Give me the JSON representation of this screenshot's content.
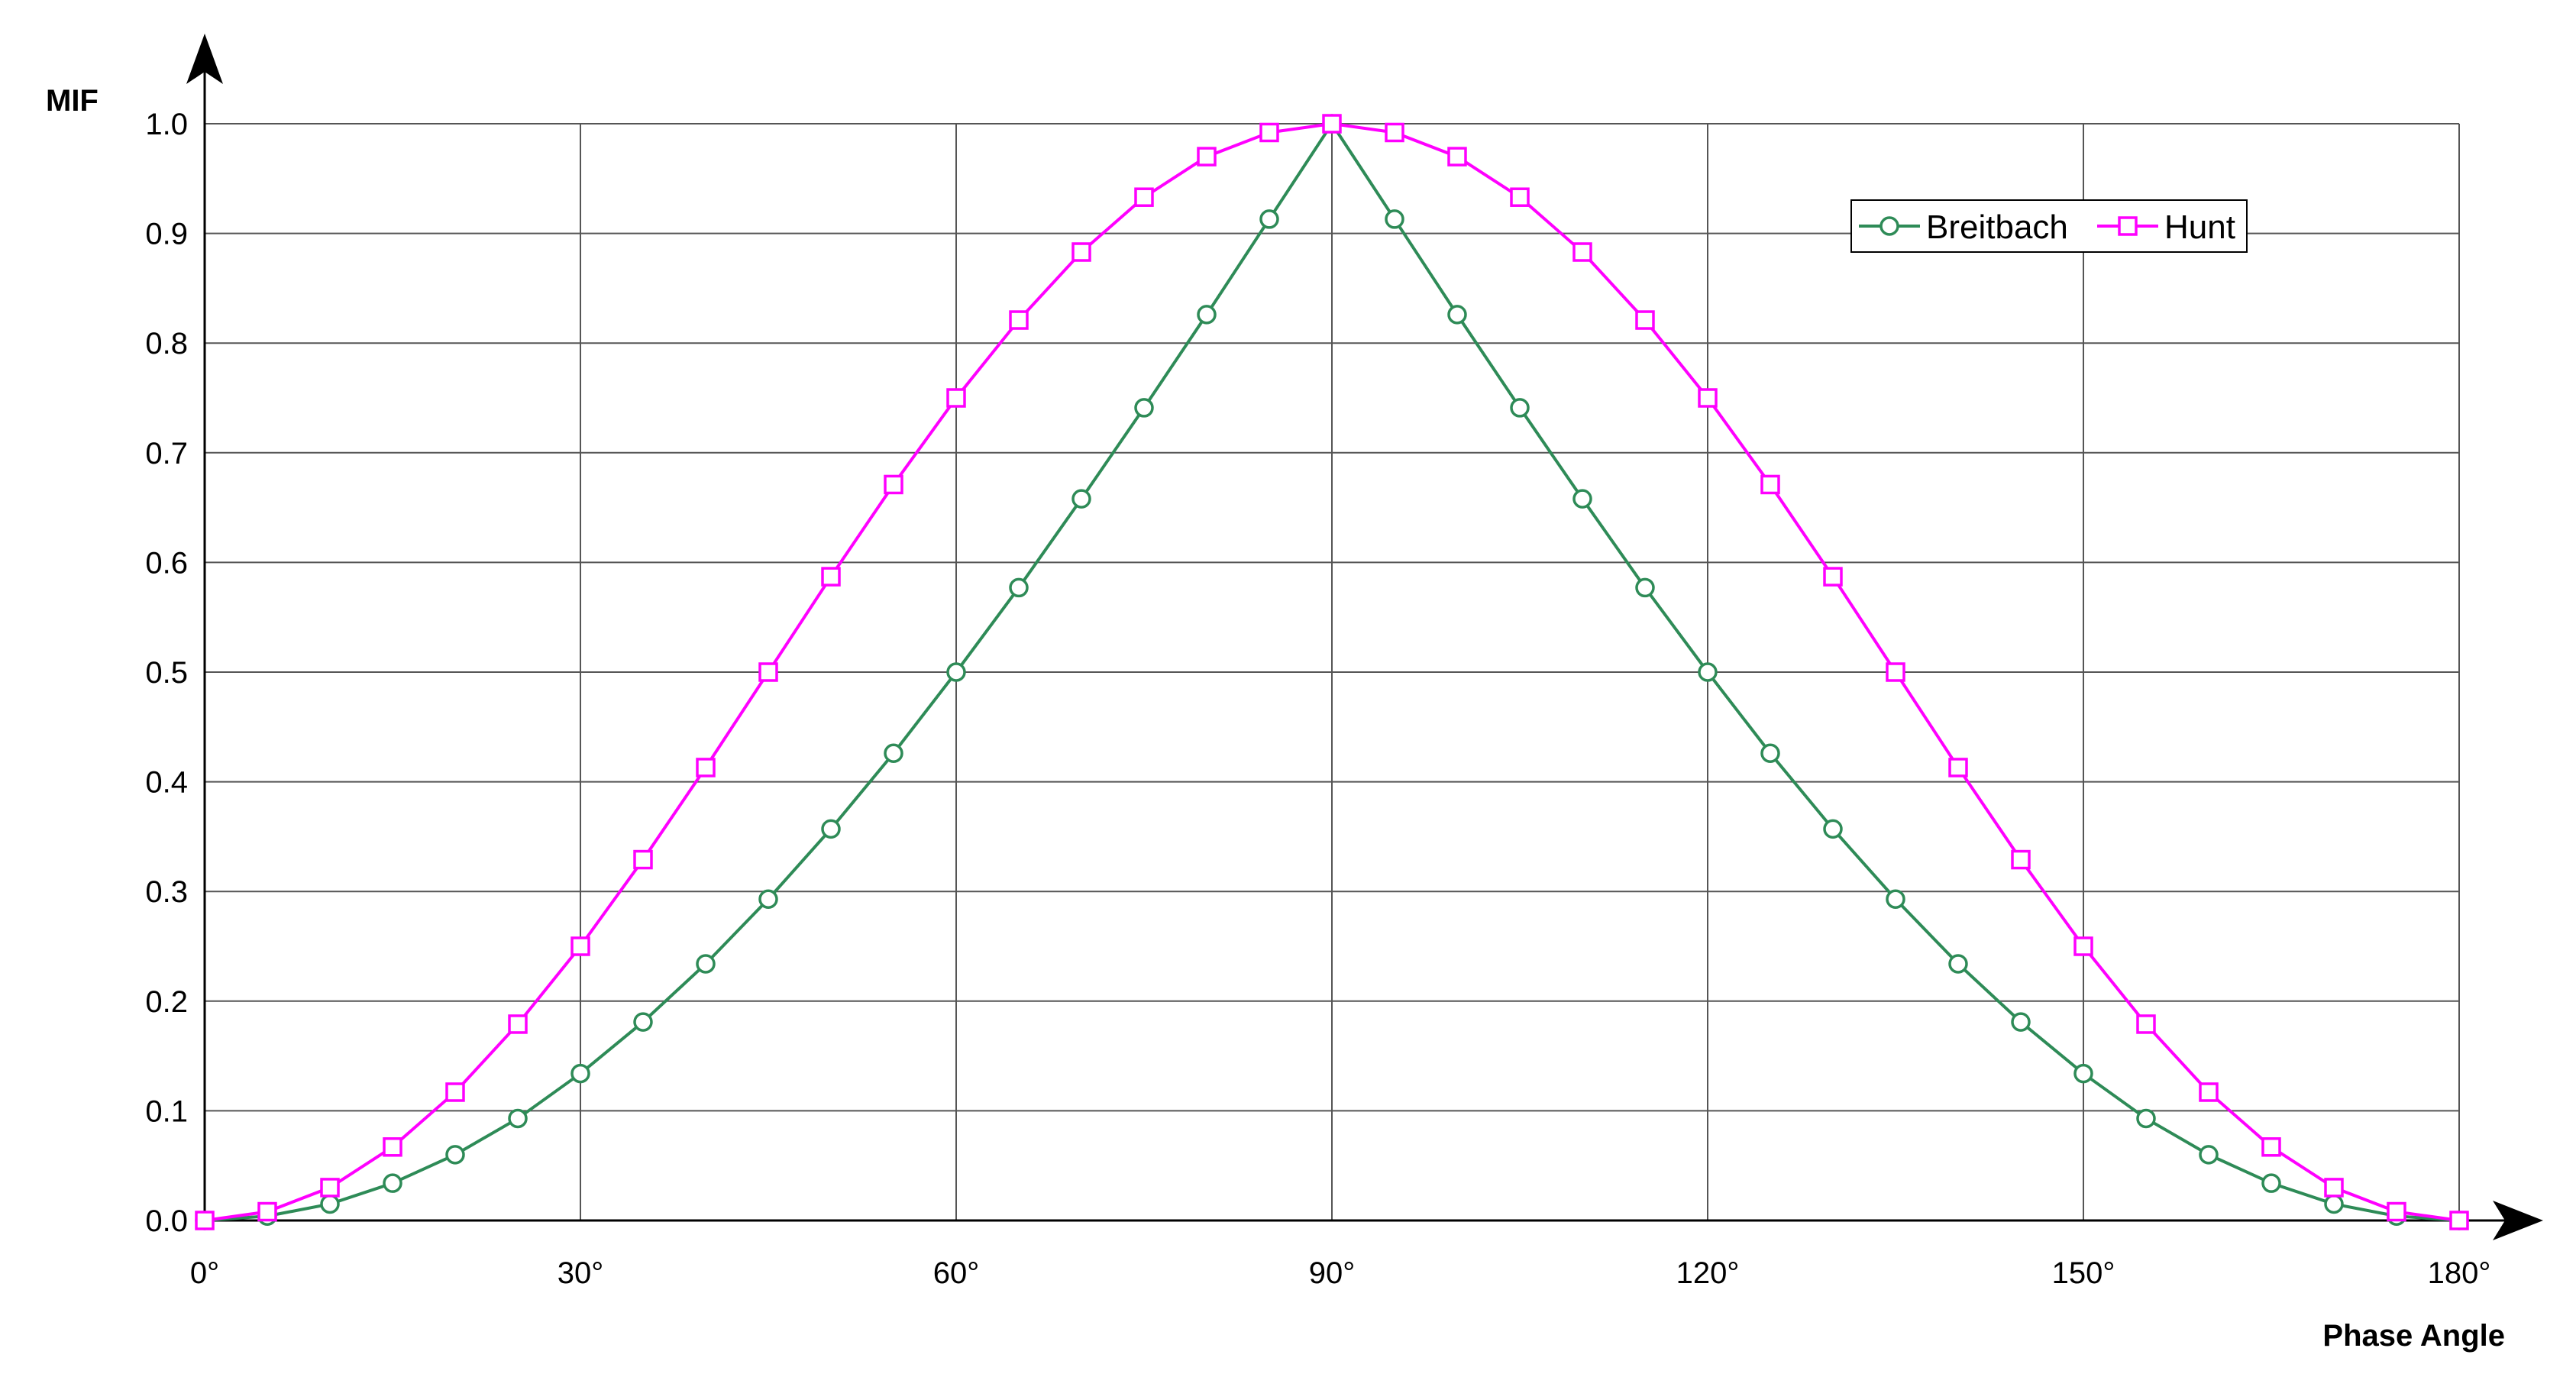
{
  "chart_data": {
    "type": "line",
    "title": "",
    "xlabel": "Phase Angle",
    "ylabel": "MIF",
    "xlim": [
      0,
      180
    ],
    "ylim": [
      0,
      1
    ],
    "x_ticks": [
      0,
      30,
      60,
      90,
      120,
      150,
      180
    ],
    "x_tick_labels": [
      "0°",
      "30°",
      "60°",
      "90°",
      "120°",
      "150°",
      "180°"
    ],
    "y_ticks": [
      0,
      0.1,
      0.2,
      0.3,
      0.4,
      0.5,
      0.6,
      0.7,
      0.8,
      0.9,
      1.0
    ],
    "y_tick_labels": [
      "0.0",
      "0.1",
      "0.2",
      "0.3",
      "0.4",
      "0.5",
      "0.6",
      "0.7",
      "0.8",
      "0.9",
      "1.0"
    ],
    "grid": true,
    "legend_position": "top-right",
    "x": [
      0,
      5,
      10,
      15,
      20,
      25,
      30,
      35,
      40,
      45,
      50,
      55,
      60,
      65,
      70,
      75,
      80,
      85,
      90,
      95,
      100,
      105,
      110,
      115,
      120,
      125,
      130,
      135,
      140,
      145,
      150,
      155,
      160,
      165,
      170,
      175,
      180
    ],
    "series": [
      {
        "name": "Breitbach",
        "color": "#2e8b57",
        "marker": "circle",
        "values": [
          0.0,
          0.004,
          0.015,
          0.034,
          0.06,
          0.093,
          0.134,
          0.181,
          0.234,
          0.293,
          0.357,
          0.426,
          0.5,
          0.577,
          0.658,
          0.741,
          0.826,
          0.913,
          1.0,
          0.913,
          0.826,
          0.741,
          0.658,
          0.577,
          0.5,
          0.426,
          0.357,
          0.293,
          0.234,
          0.181,
          0.134,
          0.093,
          0.06,
          0.034,
          0.015,
          0.004,
          0.0
        ]
      },
      {
        "name": "Hunt",
        "color": "#ff00ff",
        "marker": "square",
        "values": [
          0.0,
          0.008,
          0.03,
          0.067,
          0.117,
          0.179,
          0.25,
          0.329,
          0.413,
          0.5,
          0.587,
          0.671,
          0.75,
          0.821,
          0.883,
          0.933,
          0.97,
          0.992,
          1.0,
          0.992,
          0.97,
          0.933,
          0.883,
          0.821,
          0.75,
          0.671,
          0.587,
          0.5,
          0.413,
          0.329,
          0.25,
          0.179,
          0.117,
          0.067,
          0.03,
          0.008,
          0.0
        ]
      }
    ]
  }
}
